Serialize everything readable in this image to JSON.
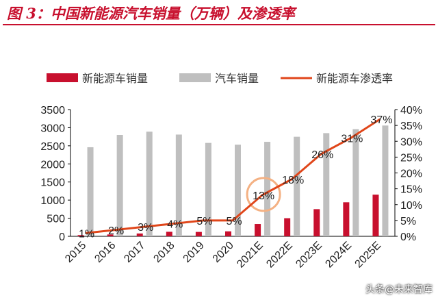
{
  "header": {
    "title": "图 3：中国新能源汽车销量（万辆）及渗透率"
  },
  "watermark": "头条@未来智库",
  "colors": {
    "nev_bar": "#c8102e",
    "total_bar": "#bfbfbf",
    "line": "#e0461a",
    "highlight": "#f4b183",
    "title": "#c8102e"
  },
  "chart_data": {
    "type": "bar",
    "categories": [
      "2015",
      "2016",
      "2017",
      "2018",
      "2019",
      "2020",
      "2021E",
      "2022E",
      "2023E",
      "2024E",
      "2025E"
    ],
    "series": [
      {
        "name": "新能源车销量",
        "type": "bar",
        "axis": "left",
        "values": [
          33,
          51,
          78,
          125,
          121,
          137,
          340,
          500,
          750,
          940,
          1150
        ]
      },
      {
        "name": "汽车销量",
        "type": "bar",
        "axis": "left",
        "values": [
          2460,
          2800,
          2890,
          2810,
          2580,
          2530,
          2610,
          2750,
          2850,
          2960,
          3060
        ]
      },
      {
        "name": "新能源车渗透率",
        "type": "line",
        "axis": "right",
        "values": [
          1,
          2,
          3,
          4,
          5,
          5,
          13,
          18,
          26,
          31,
          37
        ],
        "labels": [
          "1%",
          "2%",
          "3%",
          "4%",
          "5%",
          "5%",
          "13%",
          "18%",
          "26%",
          "31%",
          "37%"
        ]
      }
    ],
    "y_left": {
      "ylim": [
        0,
        3500
      ],
      "ticks": [
        "0",
        "500",
        "1000",
        "1500",
        "2000",
        "2500",
        "3000",
        "3500"
      ]
    },
    "y_right": {
      "ylim": [
        0,
        40
      ],
      "ticks": [
        "0%",
        "5%",
        "10%",
        "15%",
        "20%",
        "25%",
        "30%",
        "35%",
        "40%"
      ]
    },
    "legend_position": "top",
    "highlight_category": "2021E"
  }
}
